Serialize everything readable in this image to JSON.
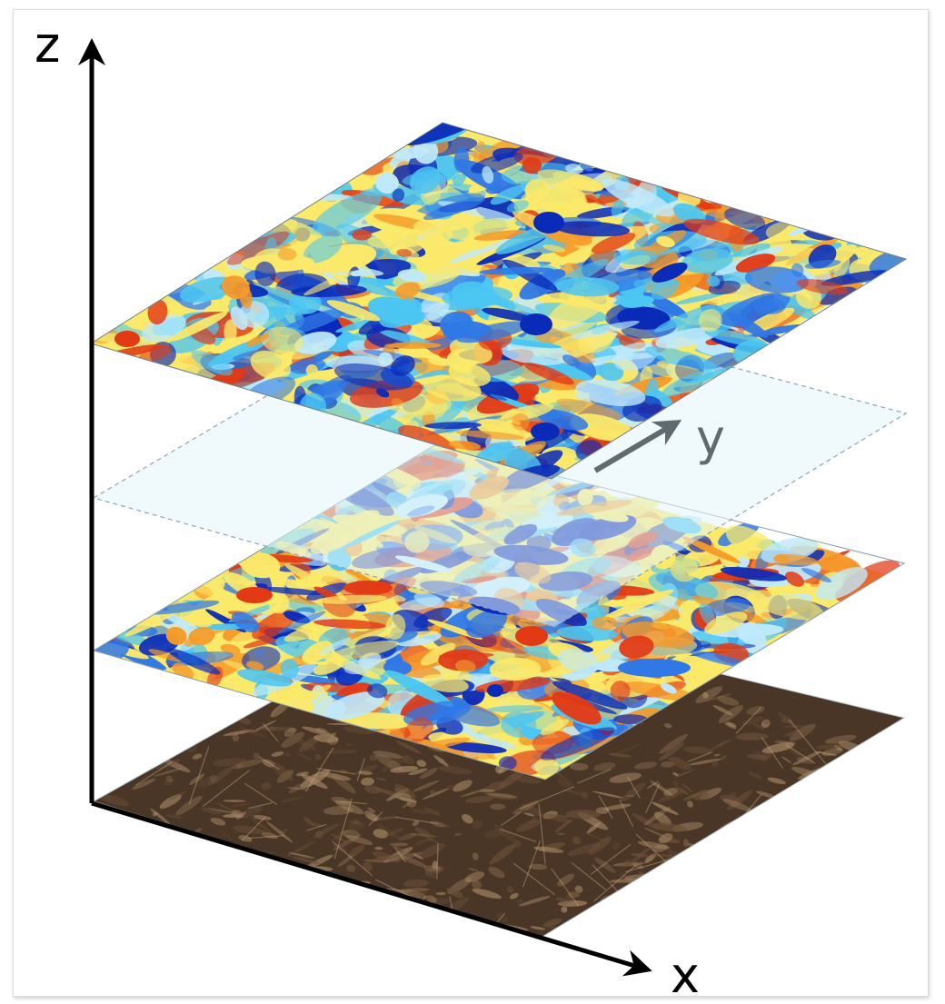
{
  "axes": {
    "z_label": "z",
    "y_label": "y",
    "x_label": "x"
  },
  "layers": [
    {
      "name": "top-turbulence-layer",
      "kind": "colormap"
    },
    {
      "name": "transparent-plane",
      "kind": "dashed-translucent"
    },
    {
      "name": "middle-turbulence-layer",
      "kind": "colormap"
    },
    {
      "name": "bottom-terrain-layer",
      "kind": "texture"
    }
  ],
  "colors": {
    "dark_blue": "#0a2bb8",
    "blue": "#2f78e6",
    "light_blue": "#4cc6f2",
    "pale_blue": "#bfe9fb",
    "yellow": "#fbe96a",
    "orange": "#f59a2a",
    "red": "#e23a15",
    "terrain_dark": "#4a3626",
    "terrain_light": "#a58764",
    "plane_fill": "#e7f6fc",
    "y_axis": "#5f6b6e"
  }
}
